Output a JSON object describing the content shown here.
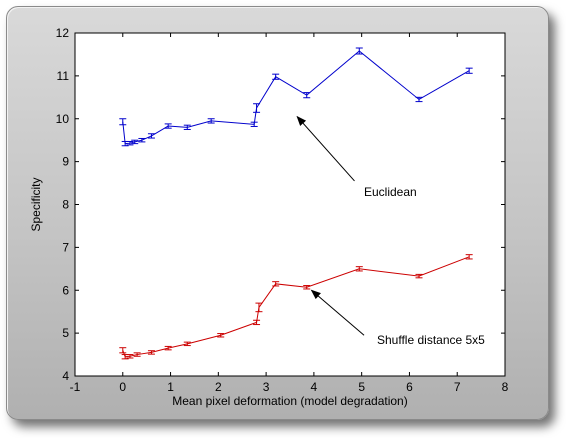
{
  "chart_data": {
    "type": "line",
    "xlabel": "Mean pixel deformation (model degradation)",
    "ylabel": "Specificity",
    "xlim": [
      -1,
      8
    ],
    "ylim": [
      4,
      12
    ],
    "xticks": [
      "-1",
      "0",
      "1",
      "2",
      "3",
      "4",
      "5",
      "6",
      "7",
      "8"
    ],
    "yticks": [
      "4",
      "5",
      "6",
      "7",
      "8",
      "9",
      "10",
      "11",
      "12"
    ],
    "grid": false,
    "colors": {
      "blue": "#0000cc",
      "red": "#cc0000"
    },
    "series": [
      {
        "color": "#0000cc",
        "points": [
          {
            "x": 0.0,
            "y": 9.93,
            "err": 0.07
          },
          {
            "x": 0.05,
            "y": 9.42,
            "err": 0.05
          },
          {
            "x": 0.15,
            "y": 9.43,
            "err": 0.04
          },
          {
            "x": 0.25,
            "y": 9.46,
            "err": 0.04
          },
          {
            "x": 0.4,
            "y": 9.5,
            "err": 0.04
          },
          {
            "x": 0.6,
            "y": 9.6,
            "err": 0.05
          },
          {
            "x": 0.95,
            "y": 9.83,
            "err": 0.05
          },
          {
            "x": 1.35,
            "y": 9.8,
            "err": 0.05
          },
          {
            "x": 1.85,
            "y": 9.95,
            "err": 0.05
          },
          {
            "x": 2.75,
            "y": 9.87,
            "err": 0.05
          },
          {
            "x": 2.8,
            "y": 10.25,
            "err": 0.1
          },
          {
            "x": 3.2,
            "y": 10.98,
            "err": 0.06
          },
          {
            "x": 3.85,
            "y": 10.55,
            "err": 0.06
          },
          {
            "x": 4.95,
            "y": 11.58,
            "err": 0.07
          },
          {
            "x": 6.2,
            "y": 10.45,
            "err": 0.05
          },
          {
            "x": 7.25,
            "y": 11.12,
            "err": 0.06
          }
        ]
      },
      {
        "color": "#cc0000",
        "points": [
          {
            "x": 0.0,
            "y": 4.6,
            "err": 0.06
          },
          {
            "x": 0.05,
            "y": 4.45,
            "err": 0.05
          },
          {
            "x": 0.15,
            "y": 4.46,
            "err": 0.04
          },
          {
            "x": 0.3,
            "y": 4.5,
            "err": 0.04
          },
          {
            "x": 0.6,
            "y": 4.55,
            "err": 0.04
          },
          {
            "x": 0.95,
            "y": 4.65,
            "err": 0.04
          },
          {
            "x": 1.35,
            "y": 4.75,
            "err": 0.04
          },
          {
            "x": 2.05,
            "y": 4.95,
            "err": 0.04
          },
          {
            "x": 2.8,
            "y": 5.25,
            "err": 0.05
          },
          {
            "x": 2.85,
            "y": 5.6,
            "err": 0.1
          },
          {
            "x": 3.2,
            "y": 6.15,
            "err": 0.05
          },
          {
            "x": 3.85,
            "y": 6.07,
            "err": 0.04
          },
          {
            "x": 4.95,
            "y": 6.5,
            "err": 0.05
          },
          {
            "x": 6.2,
            "y": 6.33,
            "err": 0.04
          },
          {
            "x": 7.25,
            "y": 6.78,
            "err": 0.05
          }
        ]
      }
    ],
    "annotations": [
      {
        "text": "Euclidean",
        "text_at": [
          5.6,
          8.2
        ],
        "arrow_from": [
          4.85,
          8.55
        ],
        "arrow_to": [
          3.65,
          10.05
        ]
      },
      {
        "text": "Shuffle distance 5x5",
        "text_at": [
          6.45,
          4.75
        ],
        "arrow_from": [
          5.05,
          4.95
        ],
        "arrow_to": [
          3.95,
          6.0
        ]
      }
    ]
  }
}
